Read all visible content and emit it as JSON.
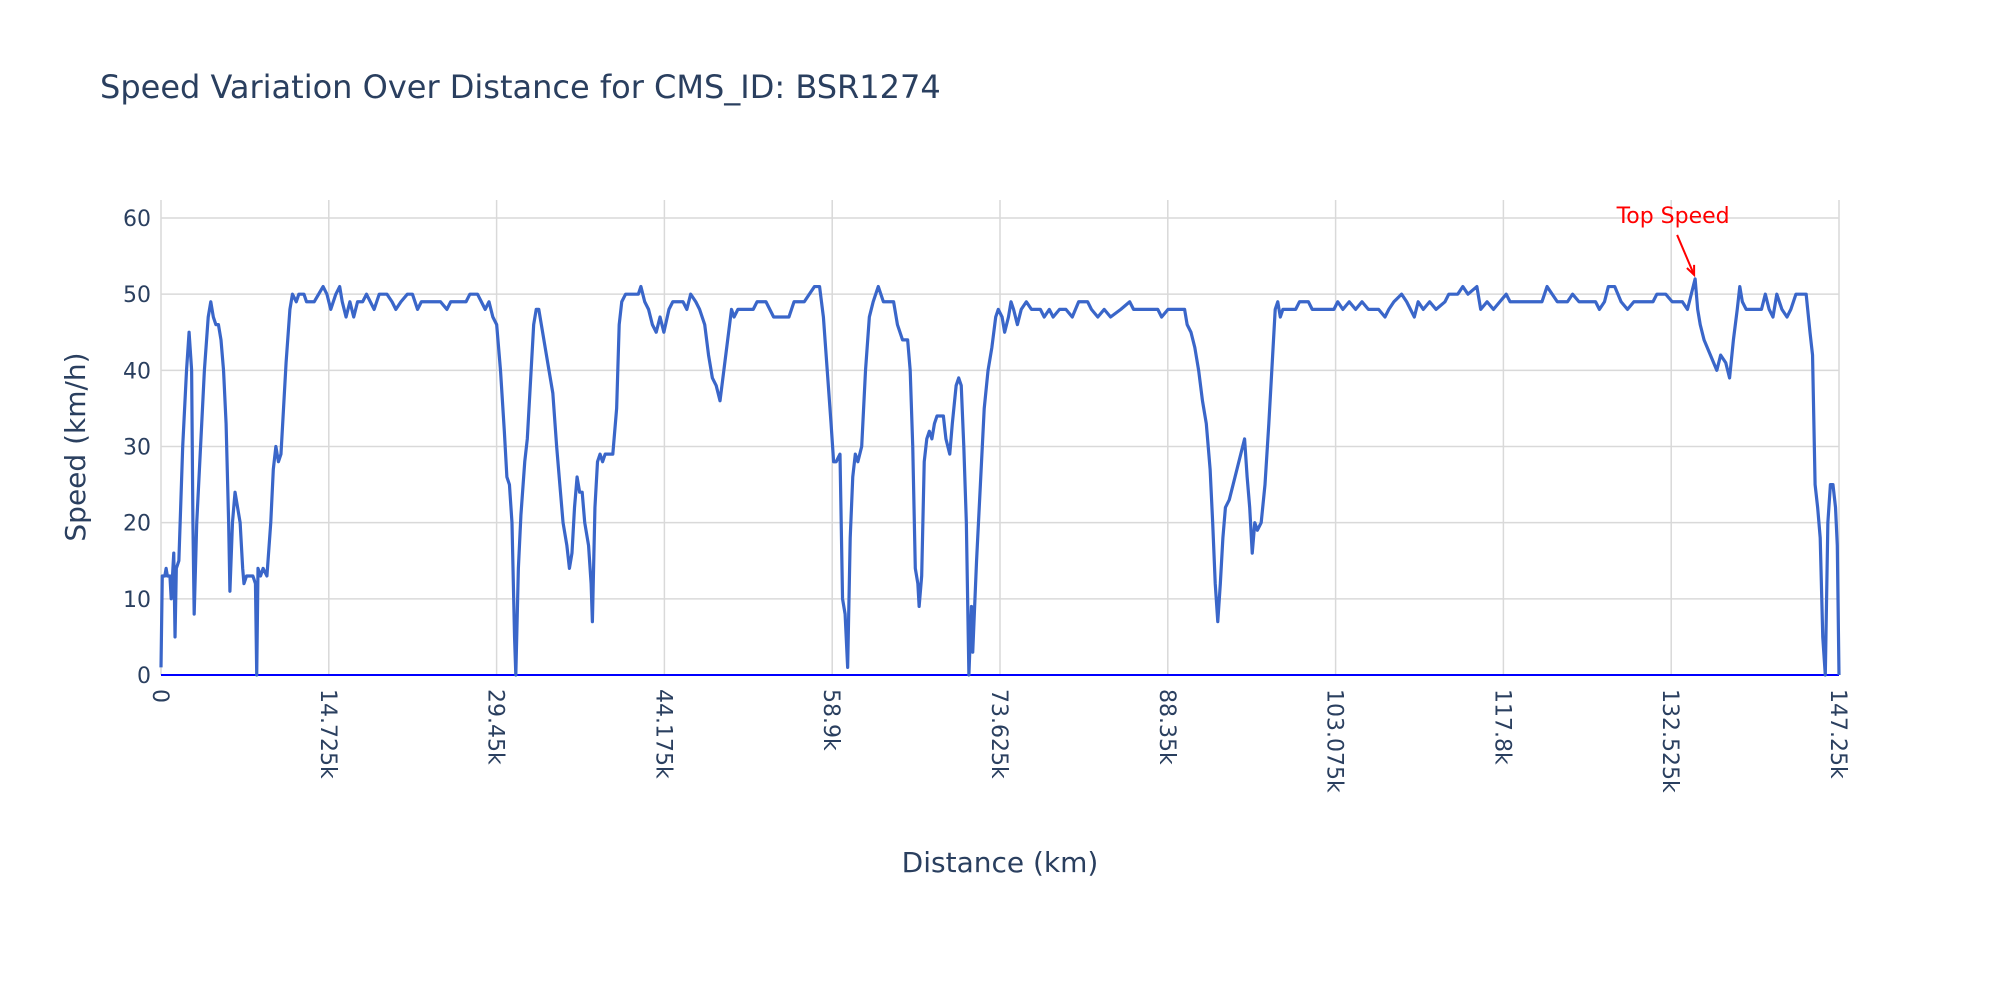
{
  "chart_data": {
    "type": "line",
    "title": "Speed Variation Over Distance for CMS_ID: BSR1274",
    "x_label": "Distance (km)",
    "y_label": "Speed (km/h)",
    "xlim": [
      0,
      147250
    ],
    "ylim": [
      0,
      60
    ],
    "xticks": [
      0,
      {
        "value": 14725,
        "label": "14.725k"
      },
      {
        "value": 29450,
        "label": "29.45k"
      },
      {
        "value": 44175,
        "label": "44.175k"
      },
      {
        "value": 58900,
        "label": "58.9k"
      },
      {
        "value": 73625,
        "label": "73.625k"
      },
      {
        "value": 88350,
        "label": "88.35k"
      },
      {
        "value": 103075,
        "label": "103.075k"
      },
      {
        "value": 117800,
        "label": "117.8k"
      },
      {
        "value": 132525,
        "label": "132.525k"
      },
      {
        "value": 147250,
        "label": "147.25k"
      }
    ],
    "yticks": [
      0,
      10,
      20,
      30,
      40,
      50,
      60
    ],
    "grid": true,
    "x": [
      0,
      112,
      336,
      448,
      560,
      784,
      896,
      1008,
      1120,
      1232,
      1344,
      1568,
      1904,
      2240,
      2464,
      2688,
      2800,
      2912,
      3136,
      3472,
      3808,
      4144,
      4368,
      4592,
      4816,
      5040,
      5264,
      5488,
      5712,
      5936,
      6048,
      6272,
      6496,
      6720,
      6944,
      7168,
      7280,
      7504,
      8064,
      8288,
      8400,
      8512,
      8736,
      8960,
      9296,
      9632,
      9856,
      10080,
      10304,
      10528,
      10752,
      10976,
      11312,
      11536,
      11872,
      12096,
      12544,
      12768,
      13440,
      14224,
      14560,
      14896,
      15344,
      15680,
      15904,
      16240,
      16576,
      16912,
      17248,
      17696,
      18032,
      18368,
      18704,
      19152,
      19824,
      20272,
      20608,
      21056,
      21616,
      22064,
      22512,
      22848,
      24528,
      25088,
      25424,
      26768,
      27104,
      27776,
      28112,
      28448,
      28784,
      29120,
      29456,
      29792,
      30128,
      30352,
      30576,
      30800,
      31024,
      31136,
      31360,
      31584,
      31920,
      32144,
      32480,
      32704,
      32928,
      33152,
      33376,
      33600,
      33824,
      34160,
      34384,
      34720,
      35056,
      35280,
      35616,
      35840,
      36064,
      36288,
      36512,
      36736,
      36960,
      37184,
      37520,
      37744,
      37856,
      38080,
      38304,
      38528,
      38752,
      38976,
      39648,
      39984,
      40208,
      40432,
      40768,
      41888,
      42112,
      42448,
      42784,
      43120,
      43456,
      43792,
      44128,
      44576,
      44912,
      45808,
      46144,
      46480,
      46928,
      47264,
      47712,
      48048,
      48384,
      48720,
      49056,
      49392,
      49728,
      50064,
      50288,
      50624,
      51968,
      52304,
      53088,
      53424,
      53760,
      55104,
      55552,
      56448,
      56896,
      57344,
      57792,
      58128,
      58464,
      58800,
      59024,
      59248,
      59584,
      59808,
      60032,
      60256,
      60480,
      60704,
      60928,
      61152,
      61488,
      61824,
      62160,
      62496,
      62720,
      62944,
      63168,
      63392,
      64288,
      64624,
      64848,
      65072,
      65520,
      65744,
      65968,
      66192,
      66416,
      66528,
      66752,
      66976,
      67200,
      67424,
      67648,
      67872,
      68096,
      68656,
      68880,
      69216,
      69440,
      69776,
      70000,
      70224,
      70448,
      70672,
      70896,
      71120,
      71232,
      71568,
      71904,
      72240,
      72576,
      72912,
      73248,
      73472,
      73808,
      74032,
      74368,
      74592,
      74816,
      75152,
      75488,
      75936,
      76384,
      77168,
      77504,
      77952,
      78288,
      78848,
      79408,
      79968,
      80528,
      81312,
      81648,
      82208,
      82768,
      83328,
      84224,
      85008,
      85344,
      87472,
      87808,
      88368,
      89824,
      90048,
      90384,
      90720,
      91056,
      91392,
      91728,
      92064,
      92288,
      92512,
      92736,
      92960,
      93184,
      93408,
      93744,
      94080,
      94416,
      94752,
      95088,
      95312,
      95536,
      95760,
      95984,
      96208,
      96544,
      96880,
      97216,
      97552,
      97776,
      98000,
      98224,
      98448,
      99568,
      99904,
      100688,
      101024,
      102928,
      103264,
      103712,
      104272,
      104832,
      105392,
      105952,
      106848,
      107408,
      107744,
      108192,
      108864,
      109312,
      109648,
      109984,
      110320,
      110768,
      111328,
      111888,
      112672,
      113008,
      113792,
      114240,
      114688,
      115472,
      115808,
      116368,
      116928,
      117488,
      118048,
      118384,
      121184,
      121632,
      122080,
      122528,
      123424,
      123872,
      124432,
      125888,
      126224,
      126672,
      127008,
      127568,
      128128,
      128688,
      129248,
      130928,
      131264,
      132048,
      132608,
      133504,
      133952,
      134288,
      134624,
      134848,
      135072,
      135408,
      135968,
      136528,
      136864,
      137312,
      137648,
      137984,
      138320,
      138544,
      138768,
      139104,
      140448,
      140784,
      141120,
      141456,
      141792,
      142240,
      142688,
      143024,
      143472,
      144368,
      144704,
      144928,
      145152,
      145376,
      145600,
      145824,
      146048,
      146272,
      146496,
      146720,
      146944,
      147100,
      147250
    ],
    "series": [
      {
        "color": "#3a66c9",
        "values": [
          1,
          13,
          13,
          14,
          13,
          13,
          10,
          13,
          16,
          5,
          14,
          15,
          30,
          40,
          45,
          40,
          20,
          8,
          20,
          30,
          40,
          47,
          49,
          47,
          46,
          46,
          44,
          40,
          33,
          20,
          11,
          20,
          24,
          22,
          20,
          14,
          12,
          13,
          13,
          12,
          0,
          14,
          13,
          14,
          13,
          20,
          27,
          30,
          28,
          29,
          35,
          41,
          48,
          50,
          49,
          50,
          50,
          49,
          49,
          51,
          50,
          48,
          50,
          51,
          49,
          47,
          49,
          47,
          49,
          49,
          50,
          49,
          48,
          50,
          50,
          49,
          48,
          49,
          50,
          50,
          48,
          49,
          49,
          48,
          49,
          49,
          50,
          50,
          49,
          48,
          49,
          47,
          46,
          40,
          32,
          26,
          25,
          20,
          5,
          0,
          14,
          21,
          28,
          31,
          40,
          46,
          48,
          48,
          46,
          44,
          42,
          39,
          37,
          30,
          24,
          20,
          17,
          14,
          16,
          22,
          26,
          24,
          24,
          20,
          17,
          12,
          7,
          22,
          28,
          29,
          28,
          29,
          29,
          35,
          46,
          49,
          50,
          50,
          51,
          49,
          48,
          46,
          45,
          47,
          45,
          48,
          49,
          49,
          48,
          50,
          49,
          48,
          46,
          42,
          39,
          38,
          36,
          40,
          44,
          48,
          47,
          48,
          48,
          49,
          49,
          48,
          47,
          47,
          49,
          49,
          50,
          51,
          51,
          47,
          40,
          33,
          28,
          28,
          29,
          10,
          8,
          1,
          18,
          26,
          29,
          28,
          30,
          40,
          47,
          49,
          50,
          51,
          50,
          49,
          49,
          46,
          45,
          44,
          44,
          40,
          30,
          14,
          12,
          9,
          13,
          28,
          31,
          32,
          31,
          33,
          34,
          34,
          31,
          29,
          33,
          38,
          39,
          38,
          30,
          20,
          0,
          9,
          3,
          15,
          25,
          35,
          40,
          43,
          47,
          48,
          47,
          45,
          47,
          49,
          48,
          46,
          48,
          49,
          48,
          48,
          47,
          48,
          47,
          48,
          48,
          47,
          49,
          49,
          48,
          47,
          48,
          47,
          48,
          49,
          48,
          48,
          47,
          48,
          48,
          46,
          45,
          43,
          40,
          36,
          33,
          27,
          20,
          12,
          7,
          12,
          18,
          22,
          23,
          25,
          27,
          29,
          31,
          26,
          22,
          16,
          20,
          19,
          20,
          25,
          33,
          42,
          48,
          49,
          47,
          48,
          48,
          49,
          49,
          48,
          48,
          49,
          48,
          49,
          48,
          49,
          48,
          48,
          47,
          48,
          49,
          50,
          49,
          48,
          47,
          49,
          48,
          49,
          48,
          49,
          50,
          50,
          51,
          50,
          51,
          48,
          49,
          48,
          49,
          50,
          49,
          49,
          51,
          50,
          49,
          49,
          50,
          49,
          49,
          48,
          49,
          51,
          51,
          49,
          48,
          49,
          49,
          50,
          50,
          49,
          49,
          48,
          50,
          52,
          48,
          46,
          44,
          42,
          40,
          42,
          41,
          39,
          44,
          48,
          51,
          49,
          48,
          48,
          50,
          48,
          47,
          50,
          48,
          47,
          48,
          50,
          50,
          45,
          42,
          25,
          22,
          18,
          5,
          0,
          20,
          25,
          25,
          22,
          17,
          0
        ]
      }
    ],
    "hline": {
      "y": 0,
      "color": "#0000ff"
    },
    "annotation": {
      "text": "Top Speed",
      "x": 134624,
      "y": 52,
      "color": "#ff0000"
    }
  }
}
